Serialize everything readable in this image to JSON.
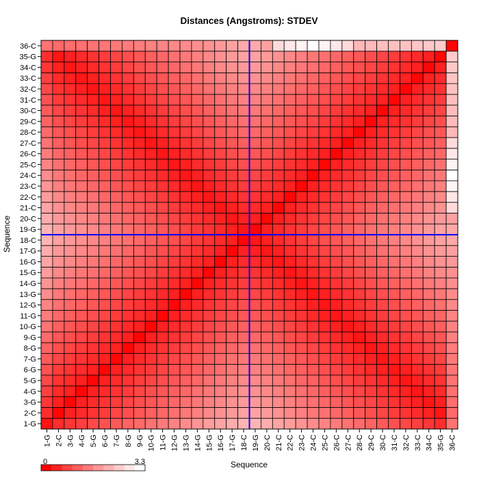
{
  "chart_data": {
    "type": "heatmap",
    "title": "Distances (Angstroms):  STDEV",
    "xlabel": "Sequence",
    "ylabel": "Sequence",
    "labels": [
      "1-G",
      "2-C",
      "3-G",
      "4-G",
      "5-G",
      "6-G",
      "7-G",
      "8-G",
      "9-G",
      "10-G",
      "11-G",
      "12-G",
      "13-G",
      "14-G",
      "15-G",
      "16-G",
      "17-G",
      "18-C",
      "19-G",
      "20-C",
      "21-C",
      "22-C",
      "23-C",
      "24-C",
      "25-C",
      "26-C",
      "27-C",
      "28-C",
      "29-C",
      "30-C",
      "31-C",
      "32-C",
      "33-C",
      "34-C",
      "35-G",
      "36-C"
    ],
    "colorscale": {
      "min": 0,
      "max": 3.3,
      "min_label": "0",
      "max_label": "3.3",
      "low_color": "#ff0000",
      "high_color": "#ffffff"
    },
    "crosshair": {
      "x": "18-C",
      "y": "18-C",
      "color": "#0000ff"
    },
    "value_model": "Approximate cell values (Angstrom stdev) estimated from shading: near 0 on the main diagonal and anti-diagonal, rising toward ~2.2 in the corners with the largest values near pairs with 36-C."
  }
}
